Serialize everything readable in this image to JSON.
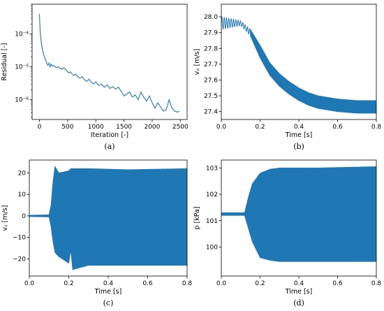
{
  "chart_data": [
    {
      "id": "a",
      "type": "line",
      "caption": "(a)",
      "xlabel": "Iteration [-]",
      "ylabel": "Residual [-]",
      "yscale": "log",
      "xlim": [
        -130,
        2620
      ],
      "ylim": [
        2.5e-07,
        0.0008
      ],
      "xticks": [
        0,
        500,
        1000,
        1500,
        2000,
        2500
      ],
      "xtick_labels": [
        "0",
        "500",
        "1000",
        "1500",
        "2000",
        "2500"
      ],
      "yticks": [
        1e-06,
        1e-05,
        0.0001
      ],
      "ytick_labels": [
        "10⁻⁶",
        "10⁻⁵",
        "10⁻⁴"
      ],
      "grid": false,
      "color": "#1f77b4",
      "x": [
        0,
        10,
        20,
        30,
        40,
        50,
        70,
        90,
        110,
        130,
        150,
        170,
        190,
        210,
        230,
        250,
        280,
        310,
        340,
        370,
        400,
        430,
        460,
        490,
        520,
        550,
        580,
        610,
        640,
        680,
        720,
        760,
        800,
        840,
        880,
        920,
        960,
        1000,
        1050,
        1100,
        1150,
        1200,
        1250,
        1300,
        1350,
        1400,
        1450,
        1500,
        1550,
        1600,
        1650,
        1700,
        1750,
        1800,
        1850,
        1900,
        1950,
        2000,
        2050,
        2100,
        2150,
        2200,
        2250,
        2300,
        2350,
        2400,
        2450,
        2480
      ],
      "y": [
        0.0004,
        0.00015,
        9e-05,
        6e-05,
        4.5e-05,
        3.5e-05,
        2.5e-05,
        2e-05,
        1.6e-05,
        1.3e-05,
        1.1e-05,
        1.3e-05,
        1e-05,
        1.2e-05,
        1.05e-05,
        1.1e-05,
        1e-05,
        9.5e-06,
        1e-05,
        9e-06,
        8.5e-06,
        9.5e-06,
        8.5e-06,
        7.5e-06,
        6.5e-06,
        7e-06,
        6e-06,
        5.5e-06,
        6e-06,
        5e-06,
        4.5e-06,
        5e-06,
        4e-06,
        3.6e-06,
        4.2e-06,
        3.4e-06,
        3e-06,
        3.5e-06,
        2.7e-06,
        3e-06,
        2.4e-06,
        2.8e-06,
        2.2e-06,
        2.5e-06,
        2.1e-06,
        2.4e-06,
        1.8e-06,
        1.3e-06,
        1.5e-06,
        1.7e-06,
        1.2e-06,
        1.4e-06,
        1e-06,
        1.7e-06,
        1.2e-06,
        9e-07,
        1.3e-06,
        8e-07,
        5.5e-07,
        8e-07,
        6e-07,
        4.5e-07,
        5e-07,
        1e-06,
        5.5e-07,
        4.5e-07,
        4.2e-07,
        4.5e-07
      ]
    },
    {
      "id": "b",
      "type": "line",
      "caption": "(b)",
      "xlabel": "Time [s]",
      "ylabel": "vₓ [m/s]",
      "xlim": [
        0,
        0.8
      ],
      "ylim": [
        27.35,
        28.08
      ],
      "xticks": [
        0.0,
        0.2,
        0.4,
        0.6,
        0.8
      ],
      "xtick_labels": [
        "0.0",
        "0.2",
        "0.4",
        "0.6",
        "0.8"
      ],
      "yticks": [
        27.4,
        27.5,
        27.6,
        27.7,
        27.8,
        27.9,
        28.0
      ],
      "ytick_labels": [
        "27.4",
        "27.5",
        "27.6",
        "27.7",
        "27.8",
        "27.9",
        "28.0"
      ],
      "grid": false,
      "color": "#1f77b4",
      "mean_x": [
        0.0,
        0.1,
        0.15,
        0.2,
        0.25,
        0.3,
        0.35,
        0.4,
        0.45,
        0.5,
        0.6,
        0.7,
        0.8
      ],
      "mean_y": [
        27.96,
        27.96,
        27.9,
        27.78,
        27.67,
        27.6,
        27.55,
        27.51,
        27.48,
        27.46,
        27.44,
        27.43,
        27.43
      ],
      "amp_x": [
        0.0,
        0.1,
        0.15,
        0.2,
        0.3,
        0.8
      ],
      "amp_y": [
        0.04,
        0.015,
        0.02,
        0.04,
        0.04,
        0.04
      ]
    },
    {
      "id": "c",
      "type": "line",
      "caption": "(c)",
      "xlabel": "Time [s]",
      "ylabel": "vᵧ [m/s]",
      "xlim": [
        0,
        0.8
      ],
      "ylim": [
        -28,
        26
      ],
      "xticks": [
        0.0,
        0.2,
        0.4,
        0.6,
        0.8
      ],
      "xtick_labels": [
        "0.0",
        "0.2",
        "0.4",
        "0.6",
        "0.8"
      ],
      "yticks": [
        -20,
        -10,
        0,
        10,
        20
      ],
      "ytick_labels": [
        "−20",
        "−10",
        "0",
        "10",
        "20"
      ],
      "grid": false,
      "color": "#1f77b4",
      "upper_x": [
        0.0,
        0.1,
        0.11,
        0.12,
        0.13,
        0.15,
        0.2,
        0.21,
        0.3,
        0.5,
        0.8
      ],
      "upper_y": [
        0.3,
        0.5,
        5,
        16,
        23,
        20,
        21,
        22,
        22,
        21.5,
        22
      ],
      "lower_x": [
        0.0,
        0.1,
        0.11,
        0.12,
        0.13,
        0.15,
        0.2,
        0.21,
        0.22,
        0.3,
        0.5,
        0.8
      ],
      "lower_y": [
        -0.3,
        -0.5,
        -5,
        -12,
        -17,
        -19,
        -22,
        -16,
        -25,
        -23,
        -23,
        -23
      ]
    },
    {
      "id": "d",
      "type": "line",
      "caption": "(d)",
      "xlabel": "Time [s]",
      "ylabel": "p [kPa]",
      "xlim": [
        0,
        0.8
      ],
      "ylim": [
        98.9,
        103.3
      ],
      "xticks": [
        0.0,
        0.2,
        0.4,
        0.6,
        0.8
      ],
      "xtick_labels": [
        "0.0",
        "0.2",
        "0.4",
        "0.6",
        "0.8"
      ],
      "yticks": [
        100,
        101,
        102,
        103
      ],
      "ytick_labels": [
        "100",
        "101",
        "102",
        "103"
      ],
      "grid": false,
      "color": "#1f77b4",
      "upper_x": [
        0.0,
        0.1,
        0.12,
        0.14,
        0.16,
        0.18,
        0.2,
        0.25,
        0.3,
        0.4,
        0.5,
        0.8
      ],
      "upper_y": [
        101.3,
        101.3,
        101.3,
        101.9,
        102.4,
        102.6,
        102.8,
        102.95,
        103.0,
        103.0,
        103.0,
        103.05
      ],
      "lower_x": [
        0.0,
        0.1,
        0.12,
        0.14,
        0.16,
        0.18,
        0.2,
        0.25,
        0.3,
        0.4,
        0.5,
        0.8
      ],
      "lower_y": [
        101.2,
        101.2,
        101.2,
        100.7,
        100.2,
        99.9,
        99.6,
        99.5,
        99.45,
        99.45,
        99.45,
        99.45
      ]
    }
  ]
}
